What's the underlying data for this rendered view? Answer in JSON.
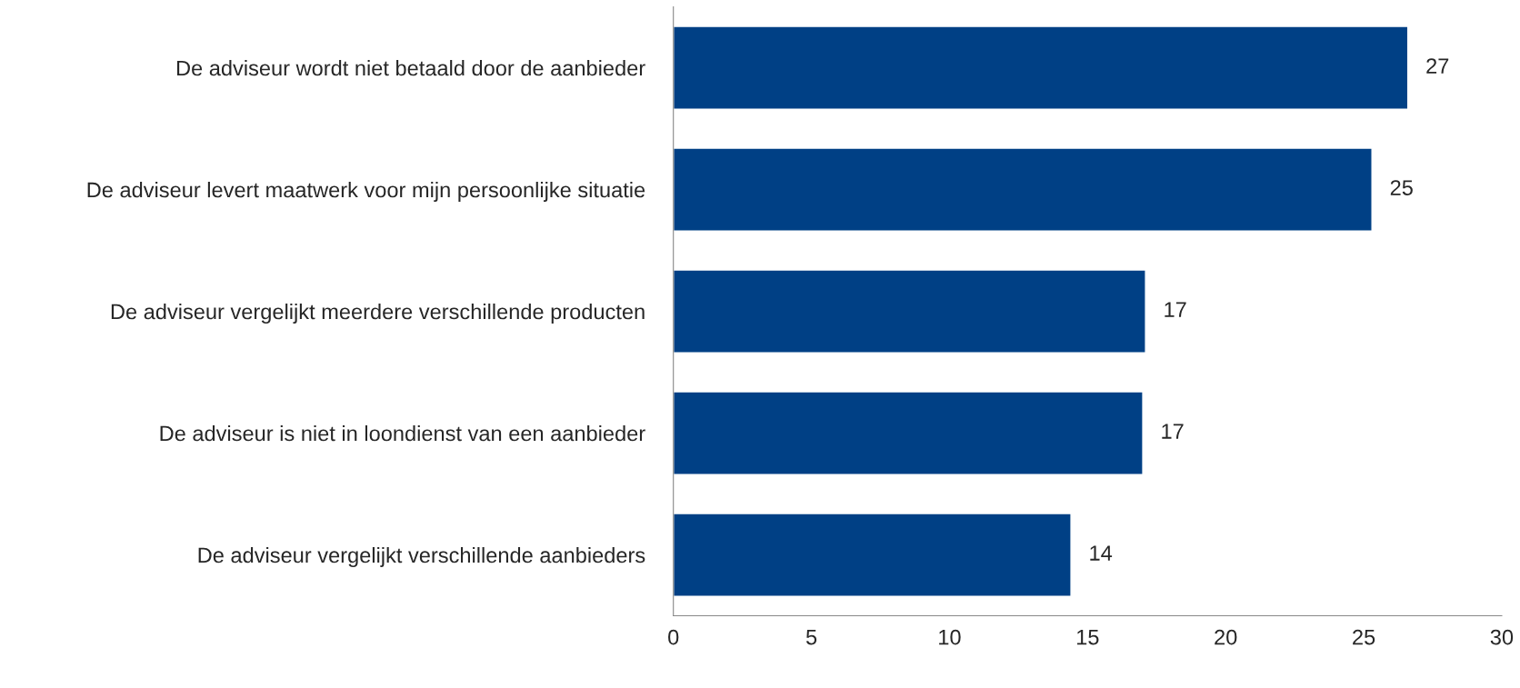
{
  "chart_data": {
    "type": "bar",
    "orientation": "horizontal",
    "categories": [
      "De adviseur wordt niet betaald door de aanbieder",
      "De adviseur levert maatwerk voor mijn persoonlijke situatie",
      "De adviseur vergelijkt meerdere verschillende producten",
      "De adviseur is niet in loondienst van een aanbieder",
      "De adviseur vergelijkt verschillende aanbieders"
    ],
    "values": [
      26.6,
      25.3,
      17.1,
      17.0,
      14.4
    ],
    "value_labels": [
      "27",
      "25",
      "17",
      "17",
      "14"
    ],
    "color": "#004085",
    "xlim": [
      0,
      30
    ],
    "xticks": [
      0,
      5,
      10,
      15,
      20,
      25,
      30
    ],
    "grid": false
  }
}
